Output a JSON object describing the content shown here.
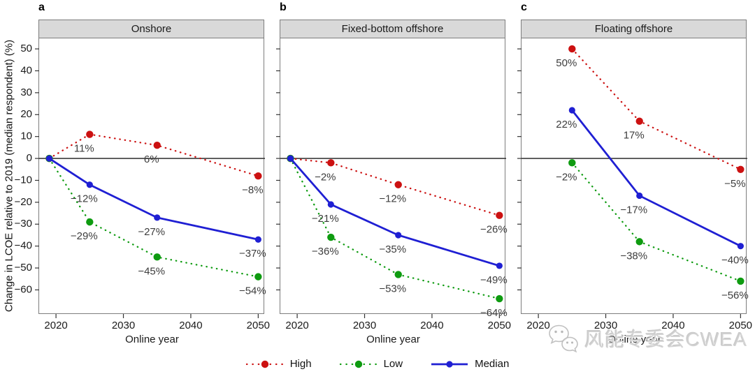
{
  "chart_data": {
    "type": "line",
    "ylabel": "Change in LCOE relative to 2019 (median respondent) (%)",
    "xlabel": "Online year",
    "x_ticks": [
      2020,
      2030,
      2040,
      2050
    ],
    "y_ticks": [
      50,
      40,
      30,
      20,
      10,
      0,
      -10,
      -20,
      -30,
      -40,
      -50,
      -60
    ],
    "xlim": [
      2017.5,
      2051
    ],
    "ylim": [
      -71,
      54.8
    ],
    "zero_line": true,
    "grid": false,
    "legend_position": "bottom",
    "panels": [
      {
        "letter": "a",
        "title": "Onshore",
        "series": [
          {
            "name": "High",
            "x": [
              2019,
              2025,
              2035,
              2050
            ],
            "values": [
              0,
              11,
              6,
              -8
            ],
            "labels": [
              "",
              "11%",
              "6%",
              "−8%"
            ]
          },
          {
            "name": "Low",
            "x": [
              2019,
              2025,
              2035,
              2050
            ],
            "values": [
              0,
              -29,
              -45,
              -54
            ],
            "labels": [
              "",
              "−29%",
              "−45%",
              "−54%"
            ]
          },
          {
            "name": "Median",
            "x": [
              2019,
              2025,
              2035,
              2050
            ],
            "values": [
              0,
              -12,
              -27,
              -37
            ],
            "labels": [
              "",
              "−12%",
              "−27%",
              "−37%"
            ]
          }
        ]
      },
      {
        "letter": "b",
        "title": "Fixed-bottom offshore",
        "series": [
          {
            "name": "High",
            "x": [
              2019,
              2025,
              2035,
              2050
            ],
            "values": [
              0,
              -2,
              -12,
              -26
            ],
            "labels": [
              "",
              "−2%",
              "−12%",
              "−26%"
            ]
          },
          {
            "name": "Low",
            "x": [
              2019,
              2025,
              2035,
              2050
            ],
            "values": [
              0,
              -36,
              -53,
              -64
            ],
            "labels": [
              "",
              "−36%",
              "−53%",
              "−64%"
            ]
          },
          {
            "name": "Median",
            "x": [
              2019,
              2025,
              2035,
              2050
            ],
            "values": [
              0,
              -21,
              -35,
              -49
            ],
            "labels": [
              "",
              "−21%",
              "−35%",
              "−49%"
            ]
          }
        ]
      },
      {
        "letter": "c",
        "title": "Floating offshore",
        "series": [
          {
            "name": "High",
            "x": [
              2025,
              2035,
              2050
            ],
            "values": [
              50,
              17,
              -5
            ],
            "labels": [
              "50%",
              "17%",
              "−5%"
            ]
          },
          {
            "name": "Low",
            "x": [
              2025,
              2035,
              2050
            ],
            "values": [
              -2,
              -38,
              -56
            ],
            "labels": [
              "−2%",
              "−38%",
              "−56%"
            ]
          },
          {
            "name": "Median",
            "x": [
              2025,
              2035,
              2050
            ],
            "values": [
              22,
              -17,
              -40
            ],
            "labels": [
              "22%",
              "−17%",
              "−40%"
            ]
          }
        ]
      }
    ],
    "legend": [
      {
        "label": "High",
        "color": "#cc1111",
        "style": "dotted"
      },
      {
        "label": "Low",
        "color": "#0e9b10",
        "style": "dotted"
      },
      {
        "label": "Median",
        "color": "#1f1fd3",
        "style": "solid"
      }
    ],
    "colors": {
      "zero_line": "#3c3c3c",
      "panel_border": "#7d7d7d",
      "strip_background": "#d9d9d9",
      "point_label_text": "#3d3d3d",
      "tick_text": "#1a1a1a"
    }
  },
  "watermark": {
    "text": "风能专委会CWEA",
    "icon": "wechat-icon"
  }
}
